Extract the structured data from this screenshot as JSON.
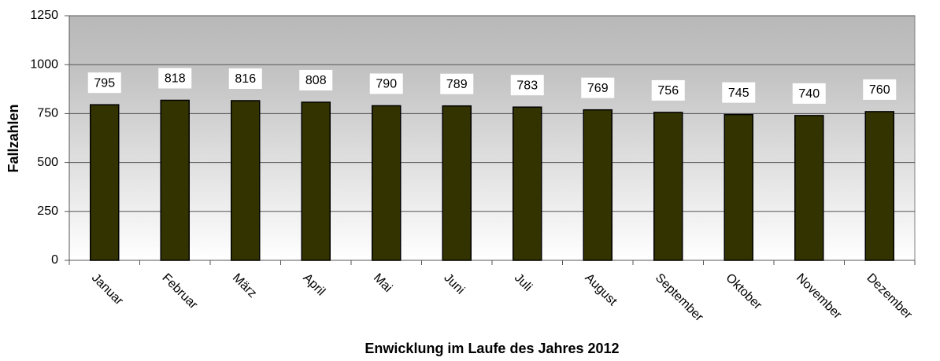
{
  "chart_data": {
    "type": "bar",
    "x_label": "Enwicklung im Laufe des Jahres 2012",
    "y_label": "Fallzahlen",
    "categories": [
      "Januar",
      "Februar",
      "März",
      "April",
      "Mai",
      "Juni",
      "Juli",
      "August",
      "September",
      "Oktober",
      "November",
      "Dezember"
    ],
    "values": [
      795,
      818,
      816,
      808,
      790,
      789,
      783,
      769,
      756,
      745,
      740,
      760
    ],
    "color": "#333300",
    "ylim": [
      0,
      1250
    ],
    "yticks": [
      0,
      250,
      500,
      750,
      1000,
      1250
    ],
    "grid": true
  }
}
